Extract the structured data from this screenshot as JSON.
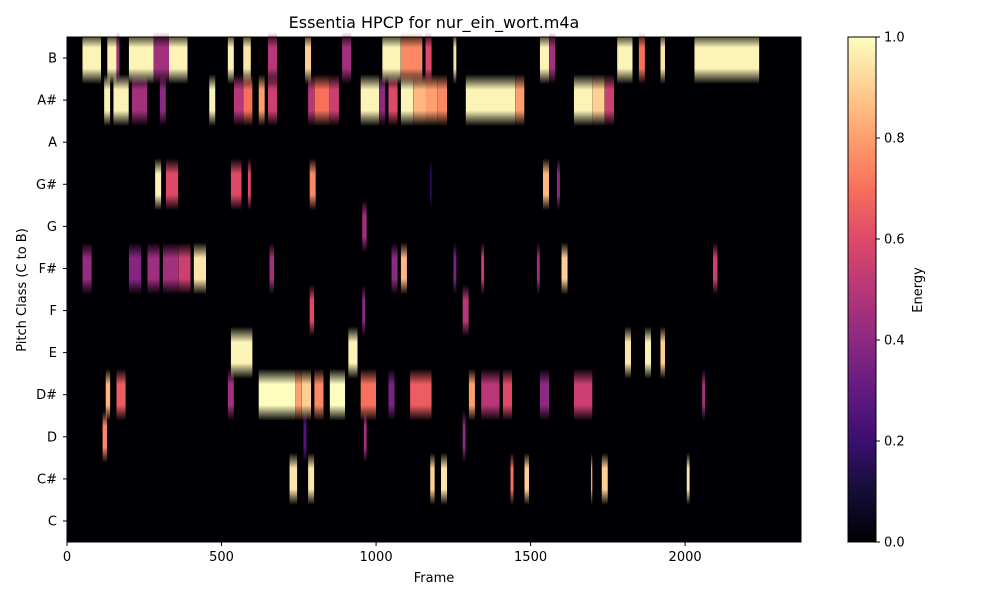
{
  "chart_data": {
    "type": "heatmap",
    "title": "Essentia HPCP for nur_ein_wort.m4a",
    "xlabel": "Frame",
    "ylabel": "Pitch Class (C to B)",
    "xlim": [
      0,
      2375
    ],
    "x_ticks": [
      0,
      500,
      1000,
      1500,
      2000
    ],
    "rows": [
      "C",
      "C#",
      "D",
      "D#",
      "E",
      "F",
      "F#",
      "G",
      "G#",
      "A",
      "A#",
      "B"
    ],
    "colorbar": {
      "label": "Energy",
      "range": [
        0.0,
        1.0
      ],
      "ticks": [
        "0.0",
        "0.2",
        "0.4",
        "0.6",
        "0.8",
        "1.0"
      ],
      "colormap": "magma",
      "stops": [
        "#000004",
        "#140e36",
        "#3b0f70",
        "#641a80",
        "#8c2981",
        "#b73779",
        "#de4968",
        "#f7705c",
        "#fe9f6d",
        "#fecf92",
        "#fcfdbf"
      ]
    },
    "events": {
      "C": [],
      "C#": [
        [
          720,
          745,
          0.95
        ],
        [
          780,
          800,
          0.95
        ],
        [
          1175,
          1190,
          0.9
        ],
        [
          1210,
          1230,
          0.95
        ],
        [
          1435,
          1445,
          0.7
        ],
        [
          1480,
          1495,
          0.9
        ],
        [
          1695,
          1700,
          0.8
        ],
        [
          1730,
          1750,
          0.9
        ],
        [
          2005,
          2015,
          0.95
        ]
      ],
      "D": [
        [
          115,
          130,
          0.75
        ],
        [
          765,
          775,
          0.25
        ],
        [
          960,
          970,
          0.45
        ],
        [
          1280,
          1290,
          0.4
        ]
      ],
      "D#": [
        [
          125,
          140,
          0.85
        ],
        [
          160,
          190,
          0.65
        ],
        [
          520,
          540,
          0.45
        ],
        [
          620,
          740,
          1.0
        ],
        [
          740,
          760,
          0.8
        ],
        [
          760,
          790,
          0.9
        ],
        [
          800,
          830,
          0.75
        ],
        [
          850,
          900,
          1.0
        ],
        [
          950,
          1000,
          0.7
        ],
        [
          1040,
          1060,
          0.35
        ],
        [
          1110,
          1180,
          0.65
        ],
        [
          1300,
          1320,
          0.8
        ],
        [
          1340,
          1400,
          0.5
        ],
        [
          1410,
          1440,
          0.6
        ],
        [
          1530,
          1560,
          0.4
        ],
        [
          1640,
          1700,
          0.55
        ],
        [
          2055,
          2065,
          0.45
        ]
      ],
      "E": [
        [
          530,
          600,
          0.98
        ],
        [
          910,
          940,
          0.98
        ],
        [
          1805,
          1825,
          0.95
        ],
        [
          1870,
          1890,
          0.98
        ],
        [
          1920,
          1935,
          0.9
        ]
      ],
      "F": [
        [
          785,
          800,
          0.6
        ],
        [
          955,
          965,
          0.4
        ],
        [
          1280,
          1300,
          0.5
        ]
      ],
      "F#": [
        [
          50,
          80,
          0.42
        ],
        [
          200,
          240,
          0.38
        ],
        [
          260,
          300,
          0.44
        ],
        [
          310,
          360,
          0.45
        ],
        [
          360,
          400,
          0.55
        ],
        [
          410,
          450,
          0.95
        ],
        [
          655,
          670,
          0.45
        ],
        [
          1050,
          1070,
          0.4
        ],
        [
          1080,
          1100,
          0.85
        ],
        [
          1250,
          1260,
          0.35
        ],
        [
          1340,
          1350,
          0.55
        ],
        [
          1520,
          1530,
          0.45
        ],
        [
          1600,
          1620,
          0.9
        ],
        [
          2090,
          2105,
          0.55
        ]
      ],
      "G": [
        [
          955,
          970,
          0.45
        ]
      ],
      "G#": [
        [
          285,
          305,
          0.98
        ],
        [
          320,
          360,
          0.6
        ],
        [
          530,
          565,
          0.6
        ],
        [
          585,
          595,
          0.6
        ],
        [
          785,
          805,
          0.75
        ],
        [
          1175,
          1180,
          0.2
        ],
        [
          1540,
          1560,
          0.85
        ],
        [
          1585,
          1595,
          0.4
        ]
      ],
      "A": [],
      "A#": [
        [
          120,
          140,
          0.98
        ],
        [
          150,
          200,
          0.98
        ],
        [
          210,
          260,
          0.45
        ],
        [
          300,
          320,
          0.4
        ],
        [
          460,
          480,
          0.98
        ],
        [
          540,
          570,
          0.5
        ],
        [
          570,
          600,
          0.7
        ],
        [
          620,
          640,
          0.8
        ],
        [
          650,
          680,
          0.55
        ],
        [
          780,
          800,
          0.5
        ],
        [
          800,
          850,
          0.7
        ],
        [
          850,
          880,
          0.55
        ],
        [
          950,
          1010,
          0.98
        ],
        [
          1010,
          1030,
          0.4
        ],
        [
          1040,
          1070,
          0.6
        ],
        [
          1080,
          1120,
          0.98
        ],
        [
          1120,
          1160,
          0.85
        ],
        [
          1160,
          1200,
          0.8
        ],
        [
          1200,
          1230,
          0.75
        ],
        [
          1290,
          1450,
          0.98
        ],
        [
          1450,
          1480,
          0.8
        ],
        [
          1640,
          1700,
          0.98
        ],
        [
          1700,
          1740,
          0.9
        ],
        [
          1740,
          1770,
          0.55
        ]
      ],
      "B": [
        [
          50,
          110,
          0.98
        ],
        [
          130,
          160,
          0.98
        ],
        [
          160,
          170,
          0.45
        ],
        [
          200,
          280,
          0.98
        ],
        [
          280,
          330,
          0.45
        ],
        [
          330,
          390,
          0.98
        ],
        [
          520,
          540,
          0.98
        ],
        [
          570,
          595,
          0.95
        ],
        [
          650,
          680,
          0.5
        ],
        [
          770,
          790,
          0.9
        ],
        [
          890,
          920,
          0.45
        ],
        [
          1020,
          1080,
          0.98
        ],
        [
          1080,
          1150,
          0.75
        ],
        [
          1160,
          1180,
          0.6
        ],
        [
          1250,
          1260,
          0.95
        ],
        [
          1530,
          1560,
          0.98
        ],
        [
          1560,
          1580,
          0.45
        ],
        [
          1780,
          1830,
          0.98
        ],
        [
          1850,
          1870,
          0.7
        ],
        [
          1920,
          1935,
          0.95
        ],
        [
          2030,
          2240,
          0.98
        ]
      ]
    }
  }
}
